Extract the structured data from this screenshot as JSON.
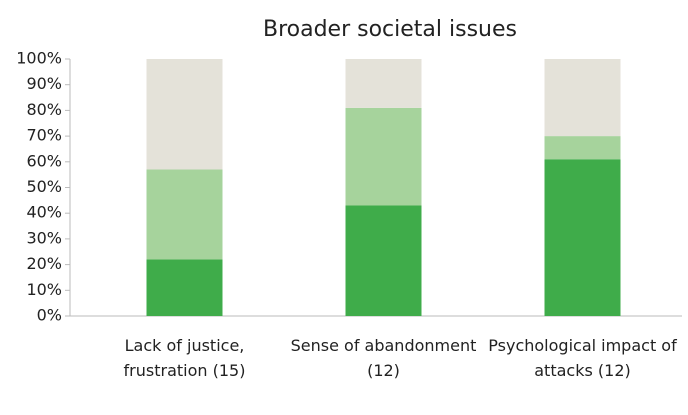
{
  "chart_data": {
    "type": "stacked_bar",
    "title": "Broader societal issues",
    "categories": [
      "Lack of justice, frustration (15)",
      "Sense of abandonment (12)",
      "Psychological impact of attacks (12)"
    ],
    "series": [
      {
        "color": "#3fac4a",
        "values": [
          22,
          43,
          61
        ]
      },
      {
        "color": "#a6d39c",
        "values": [
          35,
          38,
          9
        ]
      },
      {
        "color": "#e4e2d9",
        "values": [
          43,
          19,
          30
        ]
      }
    ],
    "ylim": [
      0,
      100
    ],
    "yticks": [
      {
        "value": 0,
        "label": "0%"
      },
      {
        "value": 10,
        "label": "10%"
      },
      {
        "value": 20,
        "label": "20%"
      },
      {
        "value": 30,
        "label": "30%"
      },
      {
        "value": 40,
        "label": "40%"
      },
      {
        "value": 50,
        "label": "50%"
      },
      {
        "value": 60,
        "label": "60%"
      },
      {
        "value": 70,
        "label": "70%"
      },
      {
        "value": 80,
        "label": "80%"
      },
      {
        "value": 90,
        "label": "90%"
      },
      {
        "value": 100,
        "label": "100%"
      }
    ],
    "grid": false
  }
}
